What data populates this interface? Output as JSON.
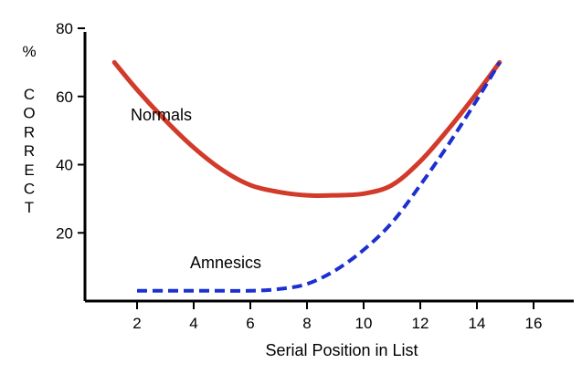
{
  "chart_data": {
    "type": "line",
    "title": "",
    "xlabel": "Serial Position in List",
    "ylabel_unit": "%",
    "ylabel": "CORRECT",
    "xlim": [
      0,
      17
    ],
    "ylim": [
      0,
      80
    ],
    "xticks": [
      "2",
      "4",
      "6",
      "8",
      "10",
      "12",
      "14",
      "16"
    ],
    "yticks": [
      "20",
      "40",
      "60",
      "80"
    ],
    "grid": false,
    "series": [
      {
        "name": "Normals",
        "color": "#d23a2a",
        "style": "solid",
        "x": [
          1.2,
          2,
          3,
          4,
          5,
          6,
          7,
          8,
          9,
          10,
          11,
          12,
          13,
          14,
          14.8
        ],
        "y": [
          70,
          62,
          53,
          45,
          38.5,
          34,
          32,
          31,
          31,
          31.5,
          34,
          41,
          50.5,
          61,
          70
        ]
      },
      {
        "name": "Amnesics",
        "color": "#1c2fd1",
        "style": "dashed",
        "x": [
          2,
          3,
          4,
          5,
          6,
          7,
          8,
          9,
          10,
          11,
          12,
          13,
          14,
          14.8
        ],
        "y": [
          3,
          3,
          3,
          3,
          3,
          3.5,
          5,
          9,
          15,
          23,
          34,
          46,
          59,
          70
        ]
      }
    ]
  }
}
